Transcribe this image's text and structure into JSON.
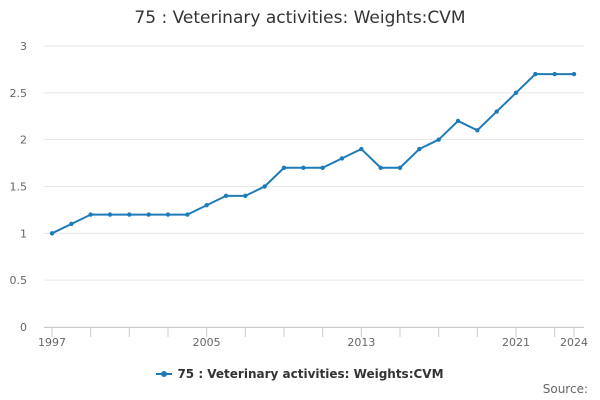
{
  "chart_data": {
    "type": "line",
    "title": "75 : Veterinary activities: Weights:CVM",
    "xlabel": "",
    "ylabel": "",
    "x": [
      1997,
      1998,
      1999,
      2000,
      2001,
      2002,
      2003,
      2004,
      2005,
      2006,
      2007,
      2008,
      2009,
      2010,
      2011,
      2012,
      2013,
      2014,
      2015,
      2016,
      2017,
      2018,
      2019,
      2020,
      2021,
      2022,
      2023,
      2024
    ],
    "x_tick_labels": [
      "1997",
      "2005",
      "2013",
      "2021",
      "2024"
    ],
    "y_tick_labels": [
      "0",
      "0.5",
      "1",
      "1.5",
      "2",
      "2.5",
      "3"
    ],
    "ylim": [
      0,
      3
    ],
    "xlim": [
      1997,
      2024
    ],
    "grid": true,
    "legend_position": "bottom",
    "series": [
      {
        "name": "75 : Veterinary activities: Weights:CVM",
        "color": "#1f7bb8",
        "values": [
          1.0,
          1.1,
          1.2,
          1.2,
          1.2,
          1.2,
          1.2,
          1.2,
          1.3,
          1.4,
          1.4,
          1.5,
          1.7,
          1.7,
          1.7,
          1.8,
          1.9,
          1.7,
          1.7,
          1.9,
          2.0,
          2.2,
          2.1,
          2.3,
          2.5,
          2.7,
          2.7,
          2.7
        ]
      }
    ]
  },
  "source_label": "Source:"
}
